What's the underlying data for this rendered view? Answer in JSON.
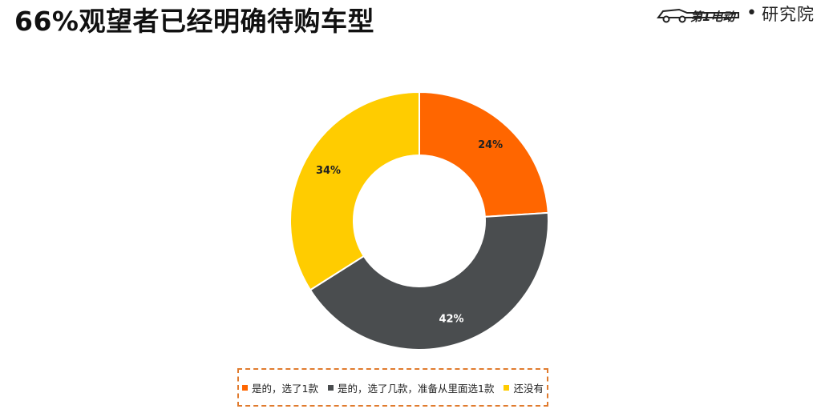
{
  "page": {
    "title": "66%观望者已经明确待购车型"
  },
  "brand": {
    "logo_icon": "car-logo-icon",
    "logo_text": "第1电动",
    "separator": "•",
    "suffix": "研究院"
  },
  "chart_data": {
    "type": "pie",
    "donut": true,
    "title": "",
    "categories": [
      "是的，选了1款",
      "是的，选了几款，准备从里面选1款",
      "还没有"
    ],
    "values": [
      24,
      42,
      34
    ],
    "labels": [
      "24%",
      "42%",
      "34%"
    ],
    "colors": [
      "#ff6600",
      "#4a4d4f",
      "#ffcc00"
    ],
    "legend_position": "bottom"
  }
}
